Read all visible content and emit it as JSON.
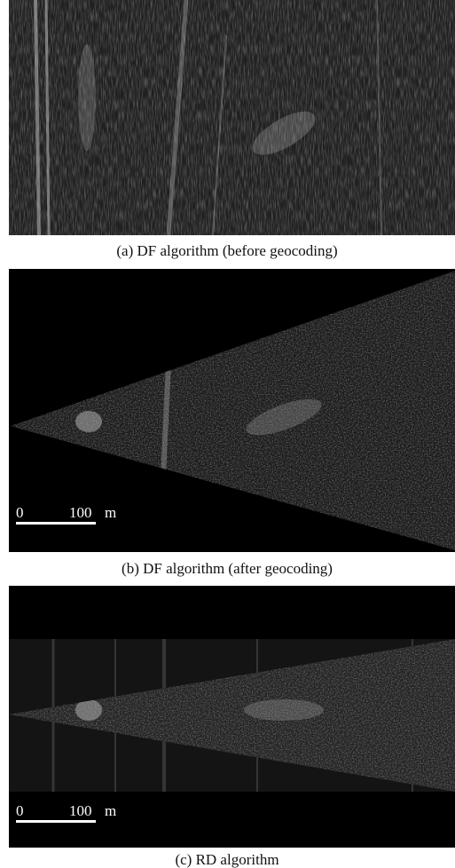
{
  "panels": [
    {
      "caption": "(a) DF algorithm (before geocoding)"
    },
    {
      "caption": "(b) DF algorithm (after geocoding)",
      "scale_bar": {
        "start": "0",
        "end": "100",
        "unit": "m"
      }
    },
    {
      "caption": "(c) RD algorithm",
      "scale_bar": {
        "start": "0",
        "end": "100",
        "unit": "m"
      }
    }
  ]
}
